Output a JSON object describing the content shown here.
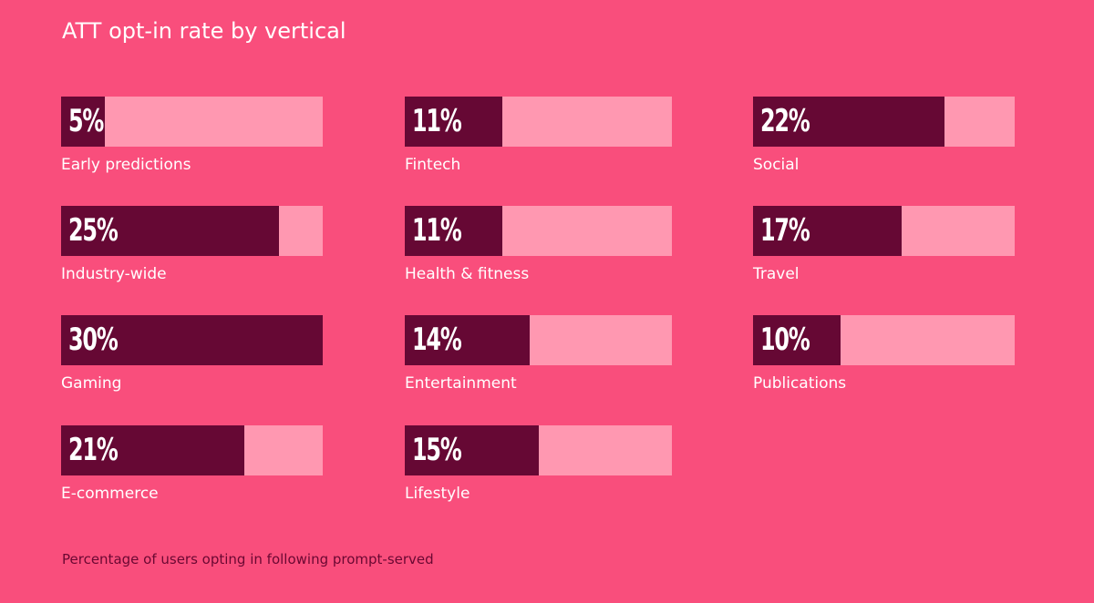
{
  "chart_data": {
    "type": "bar",
    "title": "ATT opt-in rate by vertical",
    "footnote": "Percentage of users opting in following prompt-served",
    "xlim": [
      0,
      30
    ],
    "colors": {
      "background": "#f94e7c",
      "bar": "#660834",
      "track": "#ff98b1",
      "text": "#ffffff",
      "footnote": "#6a0832"
    },
    "bars": [
      {
        "category": "Early predictions",
        "value": 5,
        "value_label": "5%"
      },
      {
        "category": "Industry-wide",
        "value": 25,
        "value_label": "25%"
      },
      {
        "category": "Gaming",
        "value": 30,
        "value_label": "30%"
      },
      {
        "category": "E-commerce",
        "value": 21,
        "value_label": "21%"
      },
      {
        "category": "Fintech",
        "value": 11,
        "value_label": "11%"
      },
      {
        "category": "Health & fitness",
        "value": 11,
        "value_label": "11%"
      },
      {
        "category": "Entertainment",
        "value": 14,
        "value_label": "14%"
      },
      {
        "category": "Lifestyle",
        "value": 15,
        "value_label": "15%"
      },
      {
        "category": "Social",
        "value": 22,
        "value_label": "22%"
      },
      {
        "category": "Travel",
        "value": 17,
        "value_label": "17%"
      },
      {
        "category": "Publications",
        "value": 10,
        "value_label": "10%"
      }
    ]
  }
}
